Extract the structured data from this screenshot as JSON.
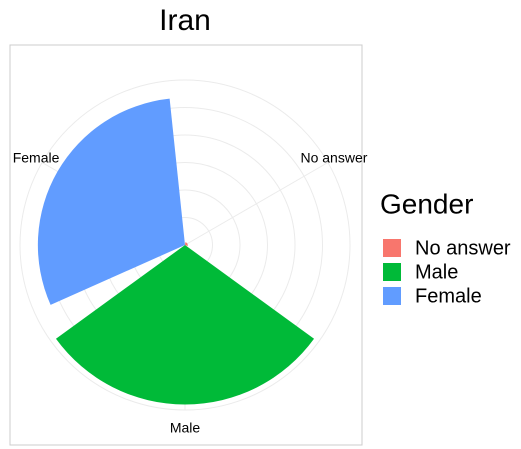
{
  "chart_data": {
    "type": "polar_bar",
    "title": "Iran",
    "categories": [
      "No answer",
      "Male",
      "Female"
    ],
    "values": [
      10,
      580,
      535
    ],
    "colors": [
      "#F8766D",
      "#00BA38",
      "#619CFF"
    ],
    "ylim": [
      0,
      600
    ],
    "yticks": [
      100,
      200,
      300,
      400,
      500,
      600
    ],
    "grid": true,
    "legend_title": "Gender",
    "legend_position": "right"
  }
}
